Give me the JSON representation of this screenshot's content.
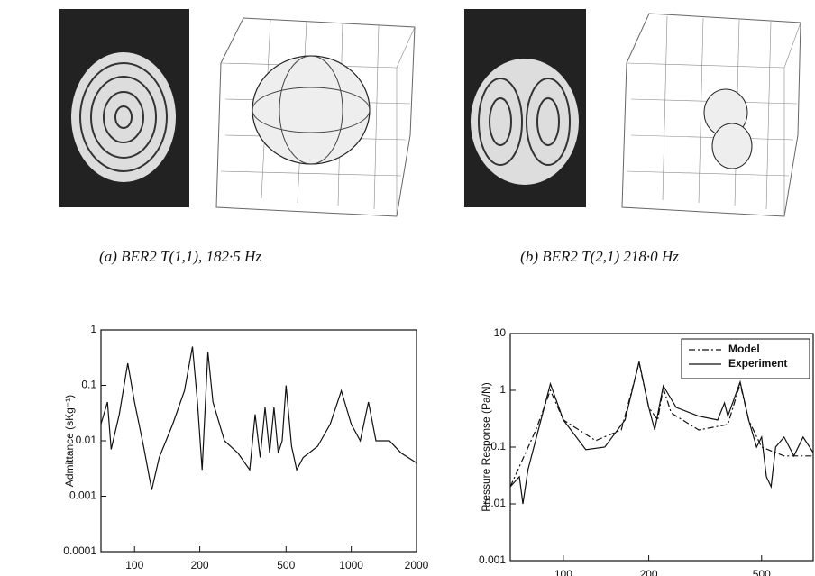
{
  "panels": [
    {
      "caption": "(a) BER2 T(1,1), 182·5 Hz"
    },
    {
      "caption": "(b) BER2 T(2,1)  218·0 Hz"
    }
  ],
  "chart_data": [
    {
      "type": "line",
      "x_scale": "log",
      "y_scale": "log",
      "y_label": "Admittance (sKg⁻¹)",
      "xlim": [
        70,
        2000
      ],
      "xticks": [
        100,
        200,
        500,
        1000,
        2000
      ],
      "ylim": [
        0.0001,
        1
      ],
      "yticks": [
        0.0001,
        0.001,
        0.01,
        0.1,
        1
      ],
      "series": [
        {
          "color": "#111111",
          "x": [
            70,
            75,
            78,
            85,
            93,
            100,
            110,
            120,
            130,
            150,
            170,
            185,
            195,
            205,
            218,
            230,
            260,
            300,
            340,
            360,
            380,
            400,
            420,
            440,
            460,
            480,
            500,
            530,
            560,
            600,
            700,
            800,
            900,
            1000,
            1100,
            1200,
            1300,
            1500,
            1700,
            2000
          ],
          "values": [
            0.02,
            0.05,
            0.007,
            0.03,
            0.25,
            0.05,
            0.008,
            0.0013,
            0.005,
            0.02,
            0.08,
            0.5,
            0.05,
            0.003,
            0.4,
            0.05,
            0.01,
            0.006,
            0.003,
            0.03,
            0.005,
            0.04,
            0.006,
            0.04,
            0.006,
            0.01,
            0.1,
            0.008,
            0.003,
            0.005,
            0.008,
            0.02,
            0.08,
            0.02,
            0.01,
            0.05,
            0.01,
            0.01,
            0.006,
            0.004
          ]
        }
      ]
    },
    {
      "type": "line",
      "x_scale": "log",
      "y_scale": "log",
      "y_label": "Pressure Response (Pa/N)",
      "xlim": [
        65,
        760
      ],
      "xticks": [
        100,
        200,
        500
      ],
      "ylim": [
        0.001,
        10
      ],
      "yticks": [
        0.001,
        0.01,
        0.1,
        1,
        10
      ],
      "legend": "upper right",
      "series": [
        {
          "name": "Model",
          "color": "#111111",
          "dash": "7 3 2 3",
          "x": [
            65,
            80,
            90,
            100,
            130,
            160,
            185,
            200,
            215,
            225,
            240,
            300,
            380,
            420,
            450,
            500,
            600,
            760
          ],
          "values": [
            0.02,
            0.2,
            1,
            0.3,
            0.13,
            0.2,
            3,
            0.5,
            0.3,
            1.1,
            0.4,
            0.2,
            0.25,
            1.3,
            0.3,
            0.1,
            0.07,
            0.07
          ]
        },
        {
          "name": "Experiment",
          "color": "#111111",
          "x": [
            65,
            70,
            72,
            75,
            90,
            100,
            120,
            140,
            165,
            185,
            200,
            210,
            225,
            250,
            300,
            350,
            370,
            380,
            420,
            450,
            480,
            500,
            520,
            540,
            560,
            600,
            650,
            700,
            760
          ],
          "values": [
            0.02,
            0.03,
            0.01,
            0.04,
            1.3,
            0.3,
            0.09,
            0.1,
            0.3,
            3.2,
            0.5,
            0.2,
            1.2,
            0.5,
            0.35,
            0.3,
            0.6,
            0.35,
            1.4,
            0.3,
            0.1,
            0.15,
            0.03,
            0.02,
            0.1,
            0.15,
            0.07,
            0.15,
            0.08
          ]
        }
      ]
    }
  ]
}
